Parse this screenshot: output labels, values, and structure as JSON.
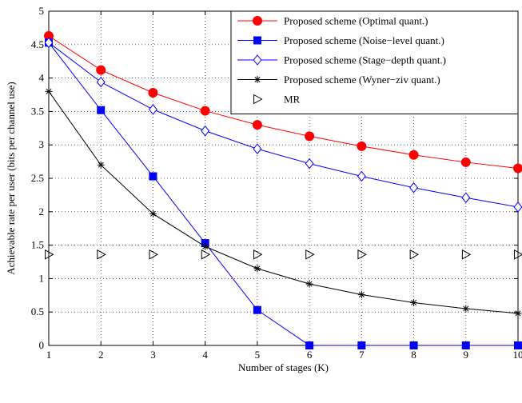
{
  "chart_data": {
    "type": "line",
    "xlabel": "Number of stages (K)",
    "ylabel": "Achievable rate per user (bits per channel use)",
    "x": [
      1,
      2,
      3,
      4,
      5,
      6,
      7,
      8,
      9,
      10
    ],
    "xlim": [
      1,
      10
    ],
    "ylim": [
      0,
      5
    ],
    "xticks": [
      "1",
      "2",
      "3",
      "4",
      "5",
      "6",
      "7",
      "8",
      "9",
      "10"
    ],
    "yticks": [
      "0",
      "0.5",
      "1",
      "1.5",
      "2",
      "2.5",
      "3",
      "3.5",
      "4",
      "4.5",
      "5"
    ],
    "grid": true,
    "legend_position": "top-right",
    "series": [
      {
        "name": "Proposed scheme (Optimal quant.)",
        "color": "#ff0000",
        "marker": "filled-circle",
        "line": true,
        "values": [
          4.63,
          4.12,
          3.78,
          3.51,
          3.3,
          3.13,
          2.98,
          2.85,
          2.74,
          2.65
        ]
      },
      {
        "name": "Proposed scheme (Noise−level quant.)",
        "color": "#0000ff",
        "marker": "filled-square",
        "line": true,
        "values": [
          4.53,
          3.52,
          2.53,
          1.53,
          0.53,
          0.0,
          0.0,
          0.0,
          0.0,
          0.0
        ]
      },
      {
        "name": "Proposed scheme (Stage−depth quant.)",
        "color": "#0000ff",
        "marker": "open-diamond",
        "line": true,
        "values": [
          4.53,
          3.94,
          3.53,
          3.21,
          2.94,
          2.72,
          2.53,
          2.36,
          2.21,
          2.07
        ]
      },
      {
        "name": "Proposed scheme (Wyner−ziv quant.)",
        "color": "#000000",
        "marker": "asterisk",
        "line": true,
        "values": [
          3.8,
          2.7,
          1.97,
          1.48,
          1.15,
          0.92,
          0.76,
          0.64,
          0.55,
          0.48
        ]
      },
      {
        "name": "MR",
        "color": "#000000",
        "marker": "open-triangle-right",
        "line": false,
        "values": [
          1.36,
          1.36,
          1.36,
          1.36,
          1.36,
          1.36,
          1.36,
          1.36,
          1.36,
          1.36
        ]
      }
    ]
  }
}
